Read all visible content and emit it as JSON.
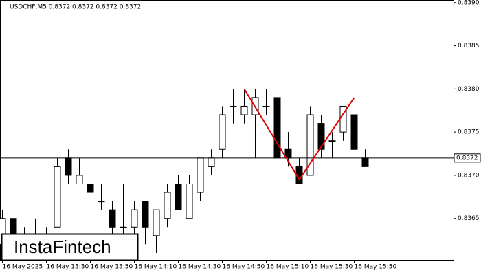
{
  "chart_data": {
    "type": "candlestick",
    "title": "USDCHF,M5  0.8372 0.8372 0.8372 0.8372",
    "brand": "InstaFintech",
    "categories": [
      "16 May 2025",
      null,
      null,
      null,
      "16 May 13:30",
      null,
      null,
      null,
      "16 May 13:50",
      null,
      null,
      null,
      "16 May 14:10",
      null,
      null,
      null,
      "16 May 14:30",
      null,
      null,
      null,
      "16 May 14:50",
      null,
      null,
      null,
      "16 May 15:10",
      null,
      null,
      null,
      "16 May 15:30",
      null,
      null,
      null,
      "16 May 15:50",
      null
    ],
    "open": [
      0.8362,
      0.8365,
      0.8363,
      0.8362,
      0.8363,
      0.8364,
      0.8372,
      0.8369,
      0.8369,
      0.8367,
      0.8366,
      0.8364,
      0.8364,
      0.8367,
      0.8363,
      0.8365,
      0.8369,
      0.8365,
      0.8368,
      0.8371,
      0.8373,
      0.8378,
      0.8377,
      0.8377,
      0.8378,
      0.8379,
      0.8373,
      0.8371,
      0.837,
      0.8376,
      0.8374,
      0.8375,
      0.8377,
      0.8372
    ],
    "high": [
      0.8366,
      0.8365,
      0.8364,
      0.8365,
      0.8364,
      0.8372,
      0.8373,
      0.8372,
      0.8369,
      0.8369,
      0.8367,
      0.8369,
      0.8367,
      0.8367,
      0.8366,
      0.8369,
      0.837,
      0.837,
      0.8372,
      0.8373,
      0.8378,
      0.838,
      0.838,
      0.838,
      0.838,
      0.8379,
      0.8375,
      0.8372,
      0.8378,
      0.8377,
      0.8375,
      0.8378,
      0.8377,
      0.8373
    ],
    "low": [
      0.8361,
      0.8361,
      0.8361,
      0.8362,
      0.8361,
      0.8364,
      0.8369,
      0.8369,
      0.8368,
      0.8366,
      0.8362,
      0.8362,
      0.8362,
      0.8362,
      0.8361,
      0.8364,
      0.8366,
      0.8365,
      0.8367,
      0.837,
      0.8372,
      0.8376,
      0.8376,
      0.8372,
      0.8377,
      0.8372,
      0.8371,
      0.8369,
      0.837,
      0.8372,
      0.8372,
      0.8374,
      0.8373,
      0.8371
    ],
    "close": [
      0.8365,
      0.8363,
      0.8362,
      0.8363,
      0.8363,
      0.8371,
      0.837,
      0.837,
      0.8368,
      0.8367,
      0.8364,
      0.8364,
      0.8366,
      0.8364,
      0.8366,
      0.8368,
      0.8366,
      0.8369,
      0.8372,
      0.8372,
      0.8377,
      0.8378,
      0.8378,
      0.8379,
      0.8378,
      0.8372,
      0.8372,
      0.8369,
      0.8377,
      0.8373,
      0.8374,
      0.8378,
      0.8373,
      0.8371
    ],
    "up_color": "#ffffff",
    "down_color": "#000000",
    "ylim": [
      0.83602,
      0.83903
    ],
    "yticks": [
      0.8365,
      {
        "value": 0.837,
        "label": "0.8370"
      },
      0.8375,
      {
        "value": 0.838,
        "label": "0.8380"
      },
      0.8385,
      {
        "value": 0.839,
        "label": "0.8390"
      }
    ],
    "price_line": 0.8372,
    "pattern_line": {
      "color": "#e00000",
      "x": [
        22,
        27,
        32
      ],
      "y": [
        0.838,
        0.83695,
        0.8379
      ]
    }
  }
}
